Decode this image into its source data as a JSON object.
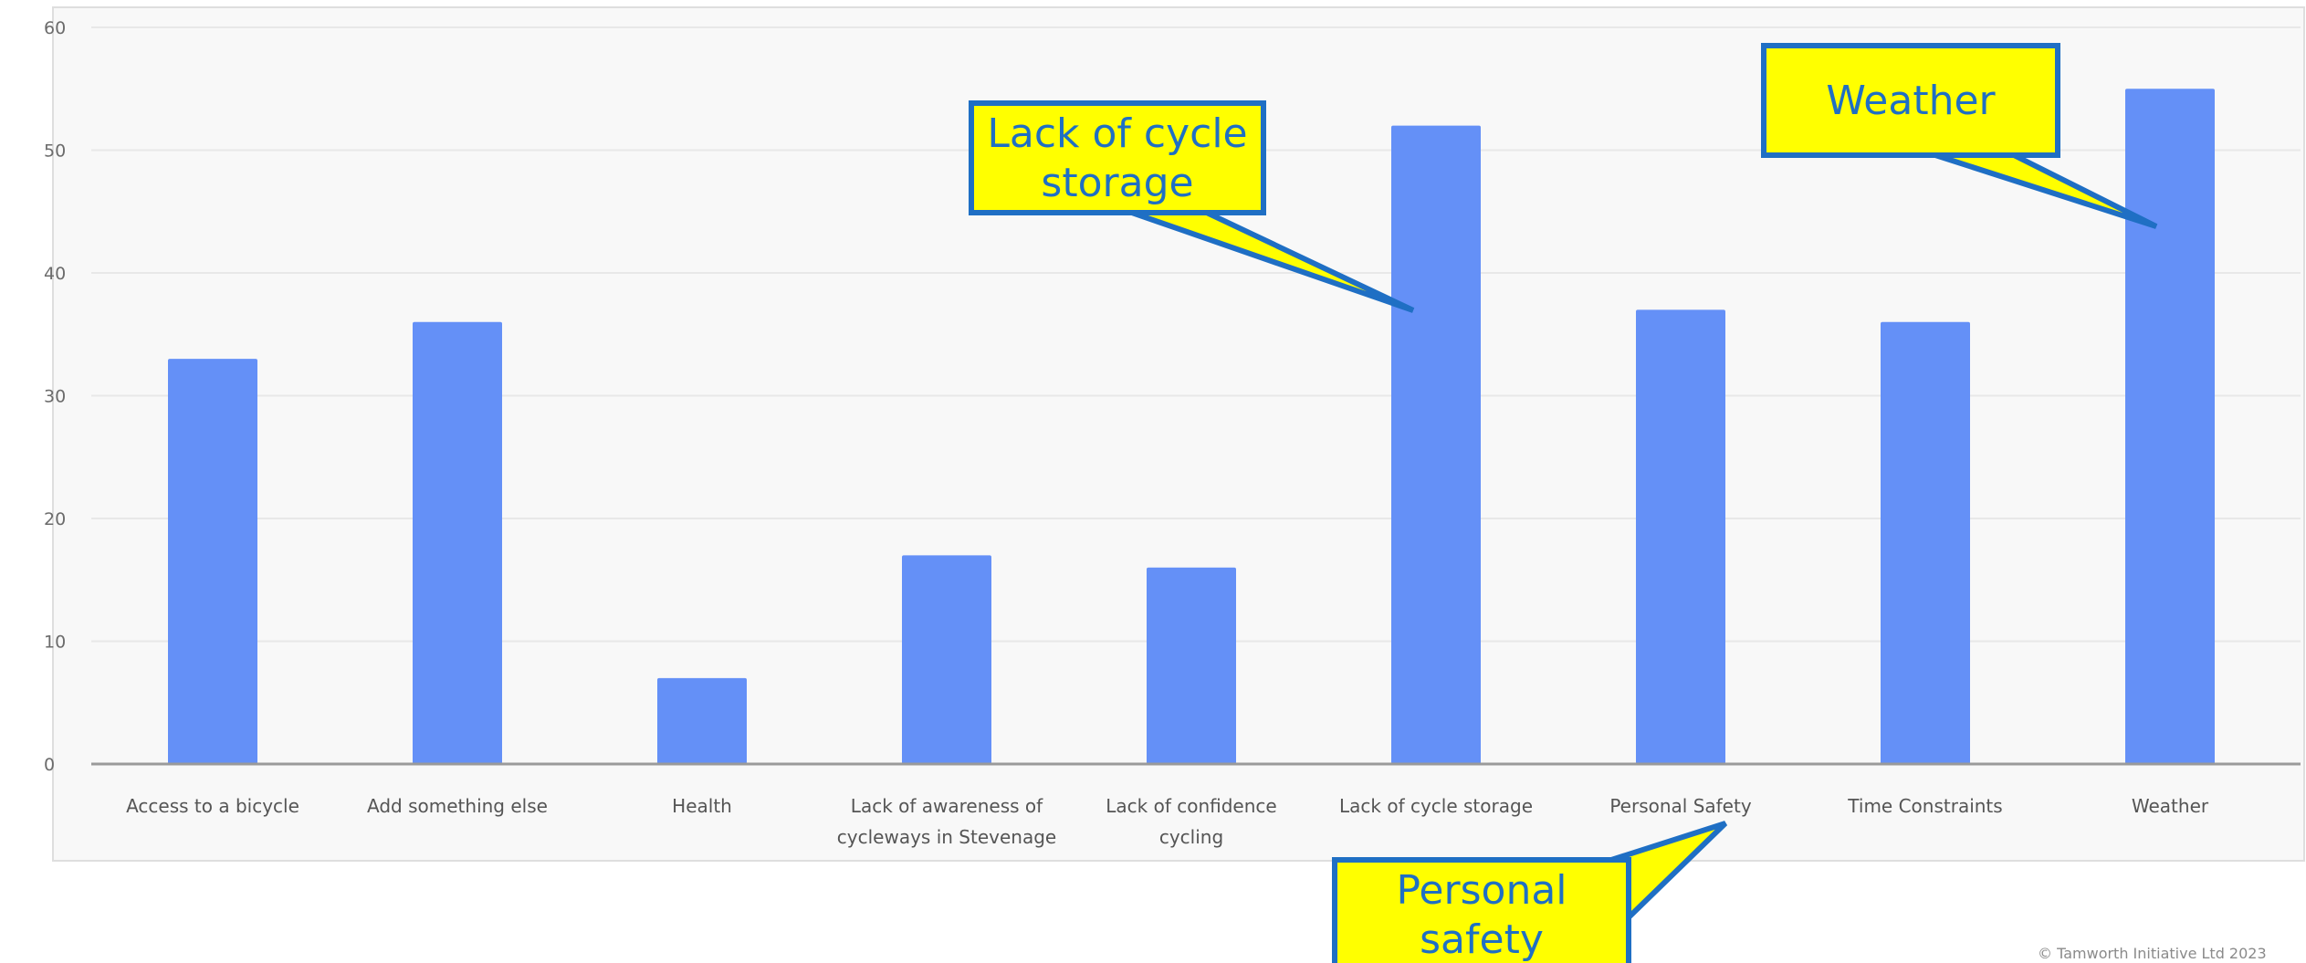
{
  "chart_data": {
    "type": "bar",
    "categories": [
      "Access to a bicycle",
      "Add something else",
      "Health",
      "Lack of awareness of cycleways in Stevenage",
      "Lack of confidence cycling",
      "Lack of cycle storage",
      "Personal Safety",
      "Time Constraints",
      "Weather"
    ],
    "category_lines": [
      [
        "Access to a bicycle"
      ],
      [
        "Add something else"
      ],
      [
        "Health"
      ],
      [
        "Lack of awareness of",
        "cycleways in Stevenage"
      ],
      [
        "Lack of confidence",
        "cycling"
      ],
      [
        "Lack of cycle storage"
      ],
      [
        "Personal Safety"
      ],
      [
        "Time Constraints"
      ],
      [
        "Weather"
      ]
    ],
    "values": [
      33,
      36,
      7,
      17,
      16,
      52,
      37,
      36,
      55
    ],
    "ylim": [
      0,
      60
    ],
    "yticks": [
      0,
      10,
      20,
      30,
      40,
      50,
      60
    ],
    "grid": true,
    "bar_color": "#6490f7",
    "grid_color": "#e8e8e8",
    "axis_color": "#9a9a9a"
  },
  "callouts": [
    {
      "id": "callout-cycle-storage",
      "lines": [
        "Lack of cycle",
        "storage"
      ],
      "points_to": "Lack of cycle storage"
    },
    {
      "id": "callout-weather",
      "lines": [
        "Weather"
      ],
      "points_to": "Weather"
    },
    {
      "id": "callout-personal-safety",
      "lines": [
        "Personal",
        "safety"
      ],
      "points_to": "Personal Safety"
    }
  ],
  "callout_style": {
    "fill": "#ffff00",
    "border": "#1f6fc4",
    "text": "#1f6fc4"
  },
  "footer": {
    "text": "© Tamworth Initiative Ltd 2023"
  }
}
